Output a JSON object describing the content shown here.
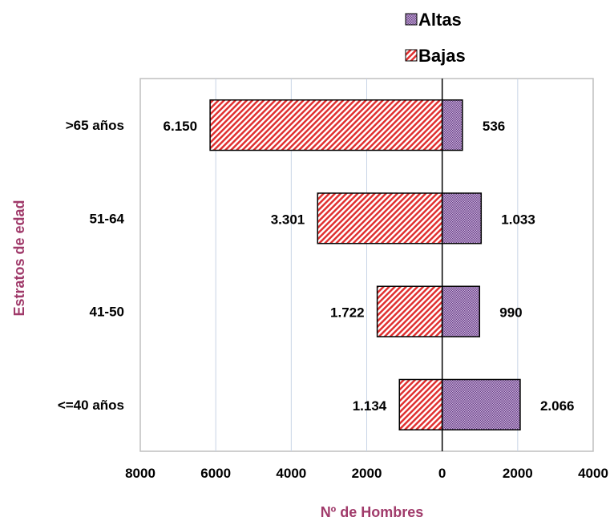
{
  "chart_data": {
    "type": "bar",
    "orientation": "horizontal-diverging",
    "categories": [
      ">65 años",
      "51-64",
      "41-50",
      "<=40 años"
    ],
    "series": [
      {
        "name": "Altas",
        "values": [
          536,
          1033,
          990,
          2066
        ],
        "labels": [
          "536",
          "1.033",
          "990",
          "2.066"
        ],
        "side": "right",
        "color": "#9b6fb5",
        "pattern": "dotted"
      },
      {
        "name": "Bajas",
        "values": [
          6150,
          3301,
          1722,
          1134
        ],
        "labels": [
          "6.150",
          "3.301",
          "1.722",
          "1.134"
        ],
        "side": "left",
        "color": "#e83a3a",
        "pattern": "hatched"
      }
    ],
    "x_ticks": [
      "8000",
      "6000",
      "4000",
      "2000",
      "0",
      "2000",
      "4000"
    ],
    "xlim": [
      -8000,
      4000
    ],
    "xlabel": "Nº de Hombres",
    "ylabel": "Estratos de edad",
    "grid": "vertical",
    "legend_position": "top-right"
  }
}
